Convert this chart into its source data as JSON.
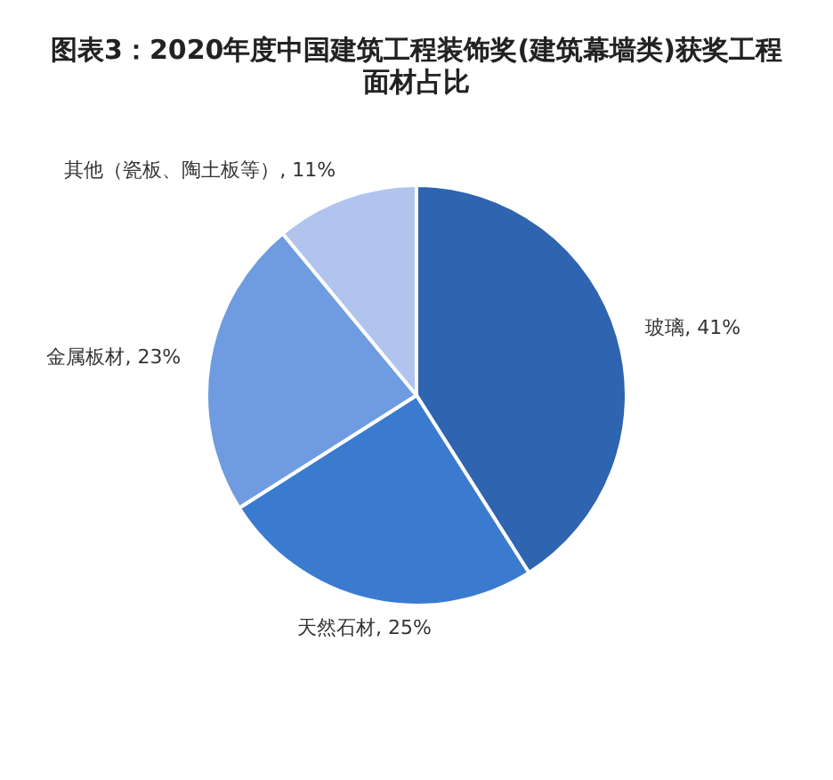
{
  "chart_data": {
    "type": "pie",
    "title": "图表3：2020年度中国建筑工程装饰奖(建筑幕墙类)获奖工程面材占比",
    "categories": [
      "玻璃",
      "天然石材",
      "金属板材",
      "其他（瓷板、陶土板等）"
    ],
    "values": [
      41,
      25,
      23,
      11
    ],
    "value_labels": [
      "41%",
      "25%",
      "23%",
      "11%"
    ],
    "colors": [
      "#2e64b0",
      "#3a7bd0",
      "#6f9be0",
      "#b0c4ee"
    ],
    "legend": false
  }
}
